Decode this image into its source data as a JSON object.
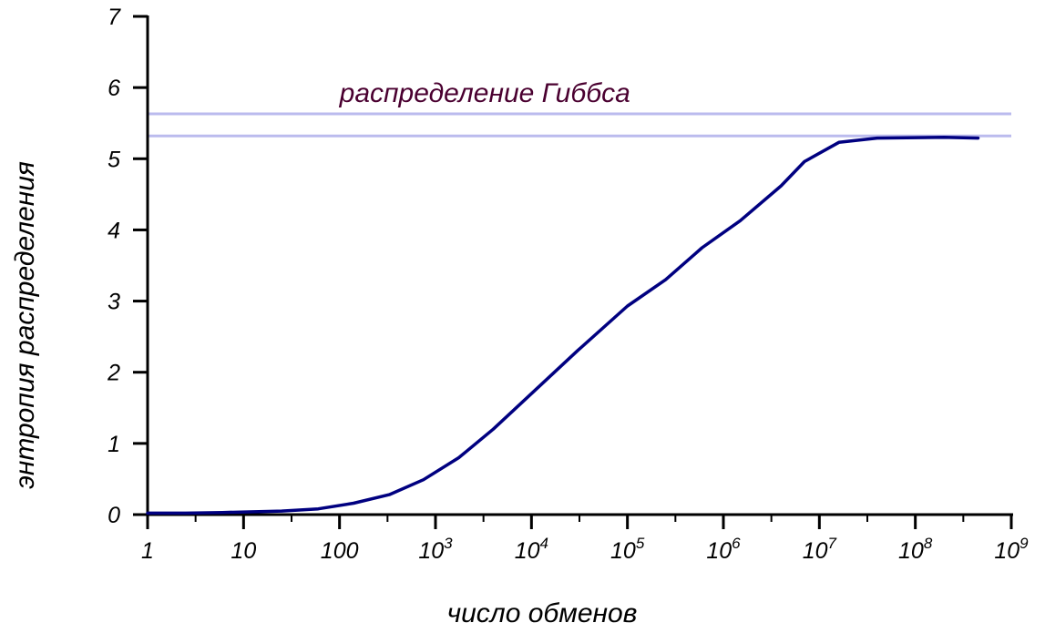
{
  "chart_data": {
    "type": "line",
    "xlabel": "число обменов",
    "ylabel": "энтропия распределения",
    "x_scale": "log",
    "xlim": [
      1,
      1000000000
    ],
    "ylim": [
      0,
      7
    ],
    "grid": false,
    "x_ticks": [
      {
        "value": 1,
        "base": "1",
        "exp": ""
      },
      {
        "value": 10,
        "base": "10",
        "exp": ""
      },
      {
        "value": 100,
        "base": "100",
        "exp": ""
      },
      {
        "value": 1000,
        "base": "10",
        "exp": "3"
      },
      {
        "value": 10000,
        "base": "10",
        "exp": "4"
      },
      {
        "value": 100000,
        "base": "10",
        "exp": "5"
      },
      {
        "value": 1000000,
        "base": "10",
        "exp": "6"
      },
      {
        "value": 10000000,
        "base": "10",
        "exp": "7"
      },
      {
        "value": 100000000,
        "base": "10",
        "exp": "8"
      },
      {
        "value": 1000000000,
        "base": "10",
        "exp": "9"
      }
    ],
    "y_ticks": [
      {
        "value": 0,
        "label": "0"
      },
      {
        "value": 1,
        "label": "1"
      },
      {
        "value": 2,
        "label": "2"
      },
      {
        "value": 3,
        "label": "3"
      },
      {
        "value": 4,
        "label": "4"
      },
      {
        "value": 5,
        "label": "5"
      },
      {
        "value": 6,
        "label": "6"
      },
      {
        "value": 7,
        "label": "7"
      }
    ],
    "series": [
      {
        "color": "#000080",
        "x": [
          1,
          2.5,
          6,
          25,
          60,
          140,
          330,
          750,
          1750,
          4000,
          10000,
          30000,
          100000,
          250000,
          600000,
          1500000,
          4000000,
          7000000,
          16000000,
          40000000,
          200000000,
          450000000
        ],
        "y": [
          0.02,
          0.02,
          0.03,
          0.05,
          0.08,
          0.16,
          0.28,
          0.49,
          0.8,
          1.2,
          1.7,
          2.3,
          2.93,
          3.3,
          3.75,
          4.13,
          4.62,
          4.96,
          5.23,
          5.29,
          5.3,
          5.29
        ]
      }
    ],
    "reference_lines": [
      {
        "y": 5.63,
        "color": "#bbbbee"
      },
      {
        "y": 5.32,
        "color": "#bbbbee"
      }
    ],
    "annotations": [
      {
        "text": "распределение Гиббса",
        "x": 100,
        "y": 5.8,
        "color": "#4a0030"
      }
    ]
  }
}
